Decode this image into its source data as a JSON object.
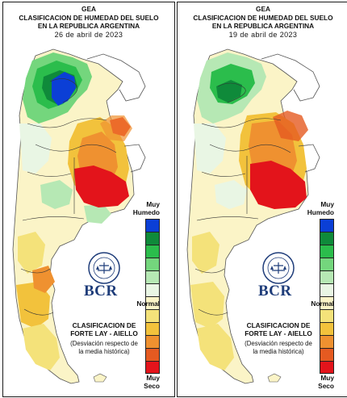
{
  "maps": [
    {
      "title1": "GEA",
      "title2": "CLASIFICACION DE HUMEDAD DEL SUELO",
      "title3": "EN LA REPUBLICA ARGENTINA",
      "date": "26 de abril de 2023"
    },
    {
      "title1": "GEA",
      "title2": "CLASIFICACION DE HUMEDAD DEL SUELO",
      "title3": "EN LA REPUBLICA ARGENTINA",
      "date": "19 de abril de 2023"
    }
  ],
  "legend": {
    "top_label_1": "Muy",
    "top_label_2": "Humedo",
    "mid_label": "Normal",
    "bottom_label_1": "Muy",
    "bottom_label_2": "Seco",
    "colors": [
      "#0b3fd6",
      "#0f8a3a",
      "#2bbd4c",
      "#74d67d",
      "#b6e8b4",
      "#e9f6e4",
      "#fbf4c7",
      "#f4e27a",
      "#f2c23c",
      "#ef9130",
      "#e55a21",
      "#e3141b"
    ]
  },
  "brand": {
    "logo_text": "BCR",
    "seal_text": "BOLSA DE COMERCIO DE ROSARIO"
  },
  "method": {
    "line1": "CLASIFICACION DE",
    "line2": "FORTE LAY - AIELLO",
    "note1": "(Desviación respecto de",
    "note2": "la media histórica)"
  },
  "colors": {
    "very_wet": "#0b3fd6",
    "wet": "#2bbd4c",
    "normal": "#fbf4c7",
    "dry": "#f2c23c",
    "very_dry": "#e3141b",
    "brand_blue": "#1f3d7a"
  }
}
